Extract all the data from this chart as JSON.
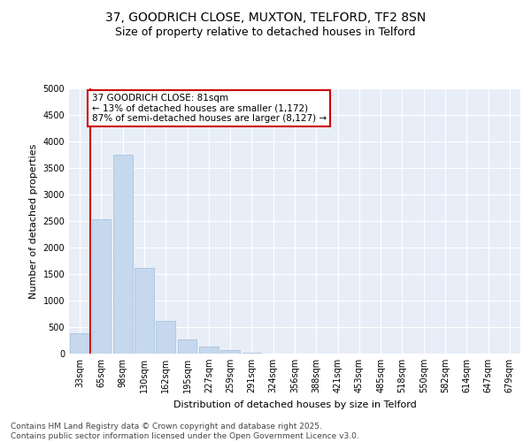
{
  "title_line1": "37, GOODRICH CLOSE, MUXTON, TELFORD, TF2 8SN",
  "title_line2": "Size of property relative to detached houses in Telford",
  "xlabel": "Distribution of detached houses by size in Telford",
  "ylabel": "Number of detached properties",
  "categories": [
    "33sqm",
    "65sqm",
    "98sqm",
    "130sqm",
    "162sqm",
    "195sqm",
    "227sqm",
    "259sqm",
    "291sqm",
    "324sqm",
    "356sqm",
    "388sqm",
    "421sqm",
    "453sqm",
    "485sqm",
    "518sqm",
    "550sqm",
    "582sqm",
    "614sqm",
    "647sqm",
    "679sqm"
  ],
  "values": [
    380,
    2530,
    3750,
    1620,
    620,
    270,
    130,
    60,
    20,
    5,
    2,
    0,
    0,
    0,
    0,
    0,
    0,
    0,
    0,
    0,
    0
  ],
  "bar_color": "#c5d8ed",
  "bar_edge_color": "#a0bdd8",
  "vline_x": 0.5,
  "vline_color": "#cc0000",
  "annotation_text": "37 GOODRICH CLOSE: 81sqm\n← 13% of detached houses are smaller (1,172)\n87% of semi-detached houses are larger (8,127) →",
  "annotation_box_color": "#cc0000",
  "ylim": [
    0,
    5000
  ],
  "yticks": [
    0,
    500,
    1000,
    1500,
    2000,
    2500,
    3000,
    3500,
    4000,
    4500,
    5000
  ],
  "background_color": "#e8eef8",
  "footer_text": "Contains HM Land Registry data © Crown copyright and database right 2025.\nContains public sector information licensed under the Open Government Licence v3.0.",
  "title_fontsize": 10,
  "subtitle_fontsize": 9,
  "axis_label_fontsize": 8,
  "tick_fontsize": 7,
  "annotation_fontsize": 7.5,
  "footer_fontsize": 6.5
}
